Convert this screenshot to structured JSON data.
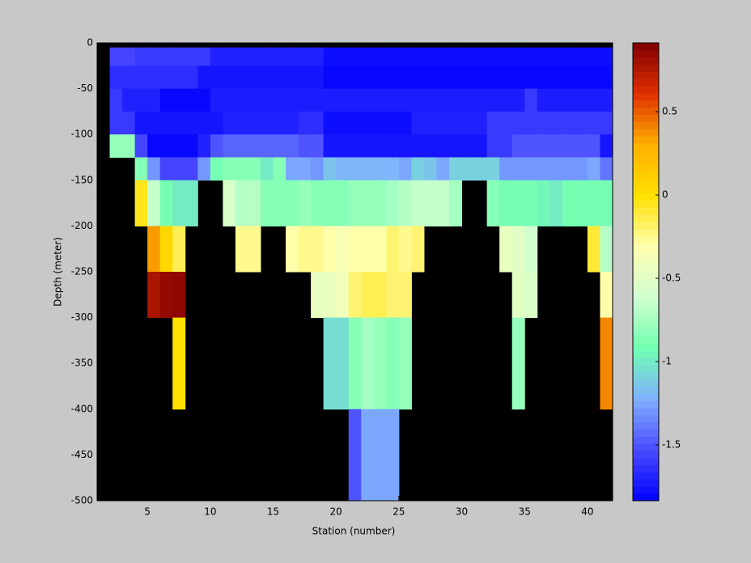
{
  "chart_data": {
    "type": "heatmap",
    "xlabel": "Station (number)",
    "ylabel": "Depth (meter)",
    "x": [
      2,
      3,
      4,
      5,
      6,
      7,
      8,
      9,
      10,
      11,
      12,
      13,
      14,
      15,
      16,
      17,
      18,
      19,
      20,
      21,
      22,
      23,
      24,
      25,
      26,
      27,
      28,
      29,
      30,
      31,
      32,
      33,
      34,
      35,
      36,
      37,
      38,
      39,
      40,
      41,
      42
    ],
    "y": [
      -5,
      -25,
      -50,
      -75,
      -100,
      -125,
      -150,
      -200,
      -250,
      -300,
      -400,
      -500
    ],
    "values": [
      [
        -1.55,
        -1.55,
        -1.6,
        -1.6,
        -1.6,
        -1.6,
        -1.6,
        -1.6,
        -1.7,
        -1.7,
        -1.7,
        -1.7,
        -1.7,
        -1.7,
        -1.7,
        -1.7,
        -1.7,
        -1.78,
        -1.78,
        -1.78,
        -1.78,
        -1.78,
        -1.78,
        -1.78,
        -1.78,
        -1.78,
        -1.78,
        -1.78,
        -1.78,
        -1.78,
        -1.78,
        -1.78,
        -1.78,
        -1.78,
        -1.78,
        -1.78,
        -1.78,
        -1.78,
        -1.78,
        -1.78
      ],
      [
        -1.65,
        -1.65,
        -1.65,
        -1.65,
        -1.65,
        -1.65,
        -1.65,
        -1.75,
        -1.75,
        -1.75,
        -1.75,
        -1.75,
        -1.75,
        -1.75,
        -1.75,
        -1.75,
        -1.75,
        -1.8,
        -1.8,
        -1.8,
        -1.8,
        -1.8,
        -1.8,
        -1.8,
        -1.8,
        -1.8,
        -1.8,
        -1.8,
        -1.8,
        -1.8,
        -1.8,
        -1.8,
        -1.8,
        -1.8,
        -1.8,
        -1.8,
        -1.8,
        -1.8,
        -1.8,
        -1.8
      ],
      [
        -1.6,
        -1.7,
        -1.7,
        -1.7,
        -1.8,
        -1.8,
        -1.8,
        -1.8,
        -1.72,
        -1.72,
        -1.72,
        -1.72,
        -1.72,
        -1.72,
        -1.72,
        -1.72,
        -1.72,
        -1.72,
        -1.72,
        -1.72,
        -1.72,
        -1.72,
        -1.72,
        -1.72,
        -1.72,
        -1.72,
        -1.72,
        -1.72,
        -1.72,
        -1.72,
        -1.72,
        -1.72,
        -1.72,
        -1.6,
        -1.72,
        -1.72,
        -1.72,
        -1.72,
        -1.72,
        -1.72
      ],
      [
        -1.6,
        -1.6,
        -1.75,
        -1.75,
        -1.75,
        -1.75,
        -1.75,
        -1.75,
        -1.75,
        -1.7,
        -1.7,
        -1.7,
        -1.7,
        -1.7,
        -1.7,
        -1.65,
        -1.65,
        -1.78,
        -1.78,
        -1.78,
        -1.78,
        -1.78,
        -1.78,
        -1.78,
        -1.7,
        -1.7,
        -1.7,
        -1.7,
        -1.7,
        -1.7,
        -1.6,
        -1.6,
        -1.6,
        -1.6,
        -1.6,
        -1.6,
        -1.6,
        -1.6,
        -1.6,
        -1.6
      ],
      [
        -0.8,
        -0.8,
        -1.55,
        -1.8,
        -1.8,
        -1.8,
        -1.8,
        -1.7,
        -1.5,
        -1.45,
        -1.45,
        -1.45,
        -1.45,
        -1.45,
        -1.45,
        -1.5,
        -1.5,
        -1.75,
        -1.75,
        -1.75,
        -1.75,
        -1.75,
        -1.75,
        -1.75,
        -1.75,
        -1.75,
        -1.75,
        -1.75,
        -1.75,
        -1.75,
        -1.6,
        -1.6,
        -1.5,
        -1.5,
        -1.5,
        -1.5,
        -1.5,
        -1.5,
        -1.5,
        -1.75
      ],
      [
        null,
        null,
        -0.85,
        -1.3,
        -1.55,
        -1.55,
        -1.55,
        -1.3,
        -0.9,
        -0.85,
        -0.85,
        -0.85,
        -1.0,
        -0.85,
        -1.25,
        -1.25,
        -1.3,
        -1.15,
        -1.2,
        -1.2,
        -1.2,
        -1.2,
        -1.2,
        -1.25,
        -1.1,
        -1.15,
        -1.25,
        -1.1,
        -1.1,
        -1.1,
        -1.1,
        -1.3,
        -1.3,
        -1.3,
        -1.3,
        -1.3,
        -1.3,
        -1.3,
        -1.25,
        -1.4
      ],
      [
        null,
        null,
        -0.05,
        -0.65,
        -0.9,
        -1.0,
        -1.0,
        null,
        null,
        -0.55,
        -0.7,
        -0.7,
        -0.85,
        -0.85,
        -0.85,
        -0.8,
        -0.85,
        -0.85,
        -0.85,
        -0.8,
        -0.8,
        -0.8,
        -0.75,
        -0.7,
        -0.65,
        -0.65,
        -0.65,
        -0.75,
        null,
        null,
        -0.85,
        -0.9,
        -0.9,
        -0.9,
        -0.95,
        -1.0,
        -0.9,
        -0.9,
        -0.9,
        -0.9
      ],
      [
        null,
        null,
        null,
        0.35,
        0.05,
        -0.15,
        null,
        null,
        null,
        null,
        -0.25,
        -0.25,
        null,
        null,
        -0.3,
        -0.25,
        -0.25,
        -0.3,
        -0.35,
        -0.3,
        -0.3,
        -0.3,
        -0.2,
        -0.25,
        -0.2,
        null,
        null,
        null,
        null,
        null,
        null,
        -0.45,
        -0.5,
        -0.6,
        null,
        null,
        null,
        null,
        -0.1,
        -0.7
      ],
      [
        null,
        null,
        null,
        0.78,
        0.85,
        0.87,
        null,
        null,
        null,
        null,
        null,
        null,
        null,
        null,
        null,
        null,
        -0.45,
        -0.45,
        -0.4,
        -0.2,
        -0.15,
        -0.15,
        -0.2,
        -0.2,
        null,
        null,
        null,
        null,
        null,
        null,
        null,
        null,
        -0.5,
        -0.55,
        null,
        null,
        null,
        null,
        null,
        -0.3
      ],
      [
        null,
        null,
        null,
        null,
        null,
        0.0,
        null,
        null,
        null,
        null,
        null,
        null,
        null,
        null,
        null,
        null,
        null,
        -1.05,
        -1.05,
        -0.85,
        -0.75,
        -0.8,
        -0.85,
        -0.8,
        null,
        null,
        null,
        null,
        null,
        null,
        null,
        null,
        -0.8,
        null,
        null,
        null,
        null,
        null,
        null,
        0.4
      ],
      [
        null,
        null,
        null,
        null,
        null,
        null,
        null,
        null,
        null,
        null,
        null,
        null,
        null,
        null,
        null,
        null,
        null,
        null,
        null,
        -1.5,
        -1.25,
        -1.25,
        -1.25,
        null,
        null,
        null,
        null,
        null,
        null,
        null,
        null,
        null,
        null,
        null,
        null,
        null,
        null,
        null,
        null,
        null
      ]
    ],
    "xlim": [
      1,
      42
    ],
    "xticks": [
      5,
      10,
      15,
      20,
      25,
      30,
      35,
      40
    ],
    "ylim": [
      -500,
      0
    ],
    "yticks": [
      0,
      -50,
      -100,
      -150,
      -200,
      -250,
      -300,
      -350,
      -400,
      -450,
      -500
    ],
    "clim": [
      -1.835,
      0.913
    ],
    "cticks": [
      0.5,
      0,
      -0.5,
      -1,
      -1.5
    ],
    "colormap": [
      "#0000ff",
      "#4a4aff",
      "#80b0ff",
      "#70ffb0",
      "#d0ffd0",
      "#ffffb0",
      "#ffe000",
      "#ffb000",
      "#e03000",
      "#800000"
    ],
    "background": "#000000"
  }
}
